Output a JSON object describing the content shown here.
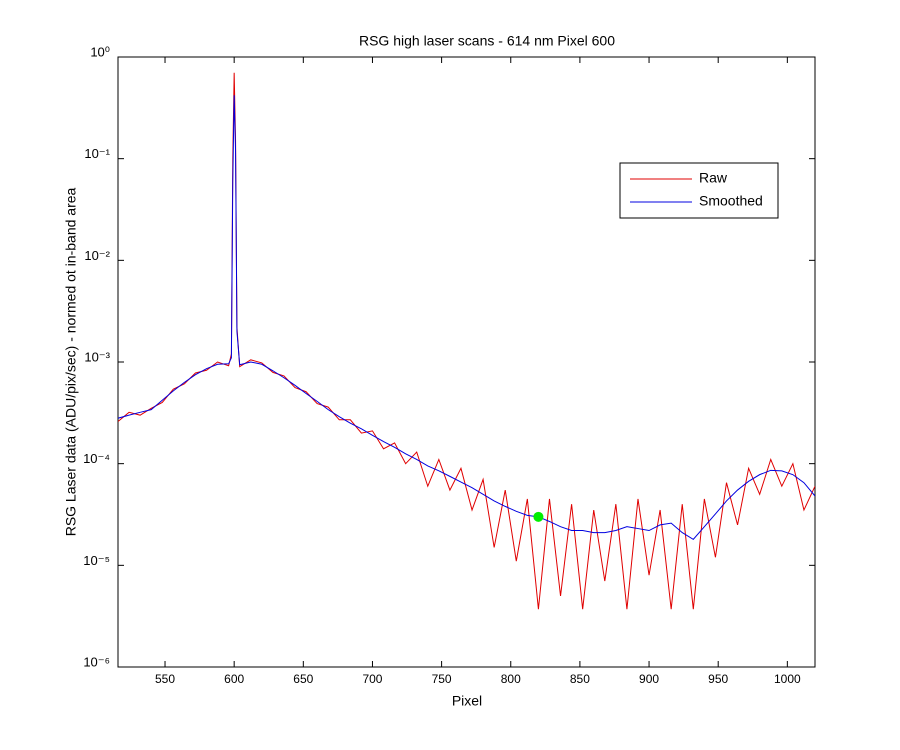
{
  "chart_data": {
    "type": "line",
    "title": "RSG high laser scans  - 614 nm    Pixel 600",
    "xlabel": "Pixel",
    "ylabel": "RSG Laser data (ADU/pix/sec) - normed ot in-band area",
    "log_y": true,
    "grid": false,
    "legend": "upper right",
    "xlim": [
      516,
      1020
    ],
    "ylim": [
      1e-06,
      1
    ],
    "xticks": [
      550,
      600,
      650,
      700,
      750,
      800,
      850,
      900,
      950,
      1000
    ],
    "yticks": [
      {
        "value": 1e-06,
        "label": "10⁻⁶"
      },
      {
        "value": 1e-05,
        "label": "10⁻⁵"
      },
      {
        "value": 0.0001,
        "label": "10⁻⁴"
      },
      {
        "value": 0.001,
        "label": "10⁻³"
      },
      {
        "value": 0.01,
        "label": "10⁻²"
      },
      {
        "value": 0.1,
        "label": "10⁻¹"
      },
      {
        "value": 1,
        "label": "10⁰"
      }
    ],
    "x": [
      516,
      524,
      532,
      540,
      548,
      556,
      564,
      572,
      580,
      588,
      596,
      598,
      599,
      600,
      601,
      602,
      604,
      612,
      620,
      628,
      636,
      644,
      652,
      660,
      668,
      676,
      684,
      692,
      700,
      708,
      716,
      724,
      732,
      740,
      748,
      756,
      764,
      772,
      780,
      788,
      796,
      804,
      812,
      820,
      828,
      836,
      844,
      852,
      860,
      868,
      876,
      884,
      892,
      900,
      908,
      916,
      924,
      932,
      940,
      948,
      956,
      964,
      972,
      980,
      988,
      996,
      1004,
      1012,
      1020
    ],
    "series": [
      {
        "name": "Raw",
        "color": "#e00000",
        "values": [
          0.00026,
          0.00032,
          0.0003,
          0.00035,
          0.0004,
          0.00054,
          0.00061,
          0.00078,
          0.00083,
          0.001,
          0.00092,
          0.0012,
          0.1,
          0.7,
          0.15,
          0.0022,
          0.0009,
          0.00105,
          0.00098,
          0.00079,
          0.00073,
          0.00056,
          0.00051,
          0.00039,
          0.00036,
          0.00027,
          0.00027,
          0.0002,
          0.00021,
          0.00014,
          0.00016,
          0.0001,
          0.00013,
          6e-05,
          0.00011,
          5.5e-05,
          9e-05,
          3.5e-05,
          7e-05,
          1.5e-05,
          5.5e-05,
          1.1e-05,
          4.5e-05,
          3.7e-06,
          4.5e-05,
          5e-06,
          4e-05,
          3.7e-06,
          3.5e-05,
          7e-06,
          4e-05,
          3.7e-06,
          4.5e-05,
          8e-06,
          3.5e-05,
          3.7e-06,
          4e-05,
          3.7e-06,
          4.5e-05,
          1.2e-05,
          6.5e-05,
          2.5e-05,
          9e-05,
          5e-05,
          0.00011,
          6e-05,
          0.0001,
          3.5e-05,
          6e-05
        ]
      },
      {
        "name": "Smoothed",
        "color": "#0000e0",
        "values": [
          0.00028,
          0.0003,
          0.00032,
          0.00034,
          0.00042,
          0.00052,
          0.00063,
          0.00075,
          0.00086,
          0.00095,
          0.00096,
          0.0011,
          0.06,
          0.42,
          0.12,
          0.002,
          0.00094,
          0.001,
          0.00095,
          0.00082,
          0.0007,
          0.00059,
          0.00049,
          0.00041,
          0.00034,
          0.00029,
          0.00025,
          0.00022,
          0.00019,
          0.000165,
          0.000145,
          0.000125,
          0.00011,
          9.5e-05,
          8.5e-05,
          7.5e-05,
          6.6e-05,
          5.8e-05,
          5e-05,
          4.3e-05,
          3.8e-05,
          3.4e-05,
          3.1e-05,
          3e-05,
          2.7e-05,
          2.4e-05,
          2.2e-05,
          2.2e-05,
          2.1e-05,
          2.1e-05,
          2.2e-05,
          2.4e-05,
          2.3e-05,
          2.2e-05,
          2.5e-05,
          2.6e-05,
          2.1e-05,
          1.8e-05,
          2.4e-05,
          3.2e-05,
          4.3e-05,
          5.5e-05,
          6.7e-05,
          7.8e-05,
          8.6e-05,
          8.5e-05,
          7.8e-05,
          6.5e-05,
          4.8e-05
        ]
      }
    ],
    "highlight": {
      "x": 820,
      "y": 3e-05,
      "color": "#00ee00"
    }
  }
}
